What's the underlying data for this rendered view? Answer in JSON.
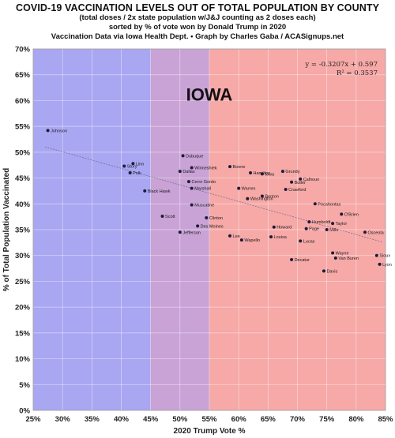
{
  "header": {
    "title": "COVID-19 VACCINATION LEVELS OUT OF TOTAL POPULATION BY COUNTY",
    "subtitle1": "(total doses / 2x state population w/J&J counting as 2 doses each)",
    "subtitle2": "sorted by % of vote won by Donald Trump in 2020",
    "subtitle3": "Vaccination Data via Iowa Health Dept. • Graph by Charles Gaba / ACASignups.net"
  },
  "colors": {
    "blue_zone": "#a9a6f2",
    "purple_zone": "#c9a2d6",
    "red_zone": "#f6a9a7",
    "point": "#1c1c3c",
    "trendline": "#6a6a8a"
  },
  "chart_data": {
    "type": "scatter",
    "state_label": "IOWA",
    "xlabel": "2020 Trump Vote %",
    "ylabel": "% of Total Population Vaccinated",
    "xlim": [
      25,
      85
    ],
    "ylim": [
      0,
      70
    ],
    "xticks": [
      "25%",
      "30%",
      "35%",
      "40%",
      "45%",
      "50%",
      "55%",
      "60%",
      "65%",
      "70%",
      "75%",
      "80%",
      "85%"
    ],
    "yticks": [
      "0%",
      "5%",
      "10%",
      "15%",
      "20%",
      "25%",
      "30%",
      "35%",
      "40%",
      "45%",
      "50%",
      "55%",
      "60%",
      "65%",
      "70%"
    ],
    "zones": [
      {
        "from": 25,
        "to": 45,
        "color": "blue"
      },
      {
        "from": 45,
        "to": 55,
        "color": "purple"
      },
      {
        "from": 55,
        "to": 85,
        "color": "red"
      }
    ],
    "grid": true,
    "trendline": {
      "equation": "y = -0.3207x + 0.597",
      "r_squared": "R² = 0.3537",
      "slope": -0.3207,
      "intercept": 0.597
    },
    "points": [
      {
        "label": "Johnson",
        "x": 27.5,
        "y": 54.2
      },
      {
        "label": "Linn",
        "x": 42.0,
        "y": 47.8
      },
      {
        "label": "Story",
        "x": 40.5,
        "y": 47.3
      },
      {
        "label": "Polk",
        "x": 41.5,
        "y": 46.0
      },
      {
        "label": "Black Hawk",
        "x": 44.0,
        "y": 42.5
      },
      {
        "label": "Dubuque",
        "x": 50.5,
        "y": 49.3
      },
      {
        "label": "Winneshiek",
        "x": 52.0,
        "y": 47.0
      },
      {
        "label": "Dallas",
        "x": 50.0,
        "y": 46.3
      },
      {
        "label": "Cerro Gordo",
        "x": 51.5,
        "y": 44.3
      },
      {
        "label": "Marshall",
        "x": 52.0,
        "y": 43.0
      },
      {
        "label": "Muscatine",
        "x": 52.0,
        "y": 39.8
      },
      {
        "label": "Scott",
        "x": 47.0,
        "y": 37.6
      },
      {
        "label": "Clinton",
        "x": 54.5,
        "y": 37.3
      },
      {
        "label": "Des Moines",
        "x": 53.0,
        "y": 35.7
      },
      {
        "label": "Jefferson",
        "x": 50.0,
        "y": 34.5
      },
      {
        "label": "Boone",
        "x": 58.5,
        "y": 47.2
      },
      {
        "label": "Hamilton",
        "x": 62.0,
        "y": 46.0
      },
      {
        "label": "Iowa",
        "x": 64.0,
        "y": 45.8
      },
      {
        "label": "Warren",
        "x": 60.0,
        "y": 43.0
      },
      {
        "label": "Benton",
        "x": 64.0,
        "y": 41.5
      },
      {
        "label": "Washington",
        "x": 61.5,
        "y": 41.0
      },
      {
        "label": "Lee",
        "x": 58.5,
        "y": 33.8
      },
      {
        "label": "Wapello",
        "x": 60.5,
        "y": 33.0
      },
      {
        "label": "Louisa",
        "x": 65.5,
        "y": 33.6
      },
      {
        "label": "Lucas",
        "x": 70.5,
        "y": 32.8
      },
      {
        "label": "Decatur",
        "x": 69.0,
        "y": 29.2
      },
      {
        "label": "Davis",
        "x": 74.5,
        "y": 27.0
      },
      {
        "label": "Wayne",
        "x": 76.0,
        "y": 30.5
      },
      {
        "label": "Van Buren",
        "x": 76.5,
        "y": 29.5
      },
      {
        "label": "Humboldt",
        "x": 72.0,
        "y": 36.5
      },
      {
        "label": "O'Brien",
        "x": 77.5,
        "y": 38.0
      },
      {
        "label": "Osceola",
        "x": 81.5,
        "y": 34.5
      },
      {
        "label": "Sioux",
        "x": 83.5,
        "y": 30.0
      },
      {
        "label": "Lyon",
        "x": 84.0,
        "y": 28.3
      },
      {
        "label": "Grundy",
        "x": 67.5,
        "y": 46.3
      },
      {
        "label": "Calhoun",
        "x": 70.5,
        "y": 44.8
      },
      {
        "label": "Butler",
        "x": 69.0,
        "y": 44.2
      },
      {
        "label": "Crawford",
        "x": 68.0,
        "y": 42.8
      },
      {
        "label": "Pocahontas",
        "x": 73.0,
        "y": 40.0
      },
      {
        "label": "Mills",
        "x": 75.0,
        "y": 35.0
      },
      {
        "label": "Taylor",
        "x": 76.0,
        "y": 36.2
      },
      {
        "label": "Howard",
        "x": 66.0,
        "y": 35.5
      },
      {
        "label": "Page",
        "x": 71.5,
        "y": 35.2
      }
    ]
  }
}
